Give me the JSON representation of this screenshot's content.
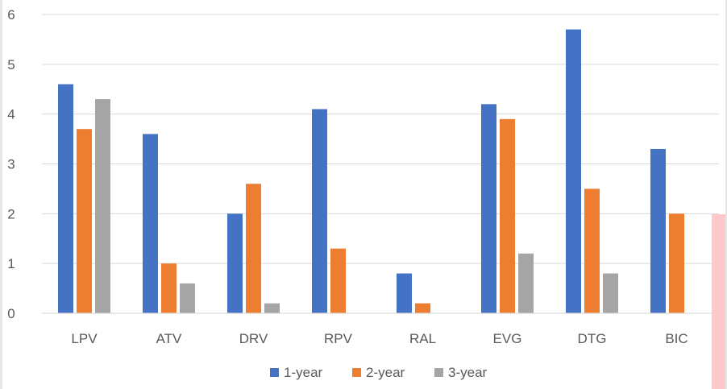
{
  "chart_data": {
    "type": "bar",
    "categories": [
      "LPV",
      "ATV",
      "DRV",
      "RPV",
      "RAL",
      "EVG",
      "DTG",
      "BIC"
    ],
    "series": [
      {
        "name": "1-year",
        "values": [
          4.6,
          3.6,
          2.0,
          4.1,
          0.8,
          4.2,
          5.7,
          3.3
        ]
      },
      {
        "name": "2-year",
        "values": [
          3.7,
          1.0,
          2.6,
          1.3,
          0.2,
          3.9,
          2.5,
          2.0
        ]
      },
      {
        "name": "3-year",
        "values": [
          4.3,
          0.6,
          0.2,
          null,
          null,
          1.2,
          0.8,
          null
        ]
      }
    ],
    "y_ticks": [
      "0",
      "1",
      "2",
      "3",
      "4",
      "5",
      "6"
    ],
    "ylim": [
      0,
      6
    ],
    "grid": true,
    "legend": "bottom-center"
  },
  "colors": {
    "series": [
      "#4472c4",
      "#ed7d31",
      "#a5a5a5"
    ],
    "grid": "#d9d9d9",
    "text": "#595959",
    "overlay": "#ffc9cc"
  }
}
